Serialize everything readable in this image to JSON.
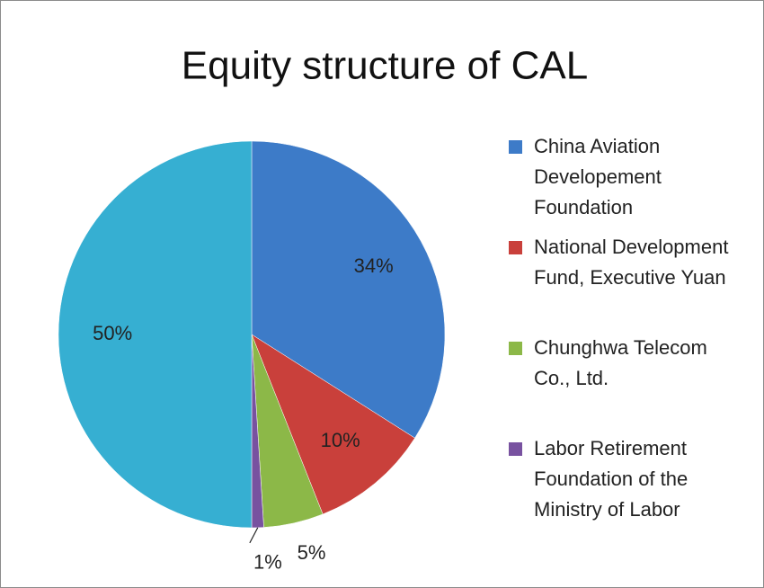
{
  "chart_data": {
    "type": "pie",
    "title": "Equity structure of CAL",
    "categories": [
      "China Aviation Developement Foundation",
      "National Development Fund, Executive Yuan",
      "Chunghwa Telecom Co., Ltd.",
      "Labor Retirement Foundation of the Ministry of Labor",
      null
    ],
    "values": [
      34,
      10,
      5,
      1,
      50
    ],
    "value_labels": [
      "34%",
      "10%",
      "5%",
      "1%",
      "50%"
    ],
    "colors": [
      "#3d7bc8",
      "#c9403b",
      "#8cb848",
      "#7852a0",
      "#36afd2"
    ],
    "legend": "right"
  }
}
